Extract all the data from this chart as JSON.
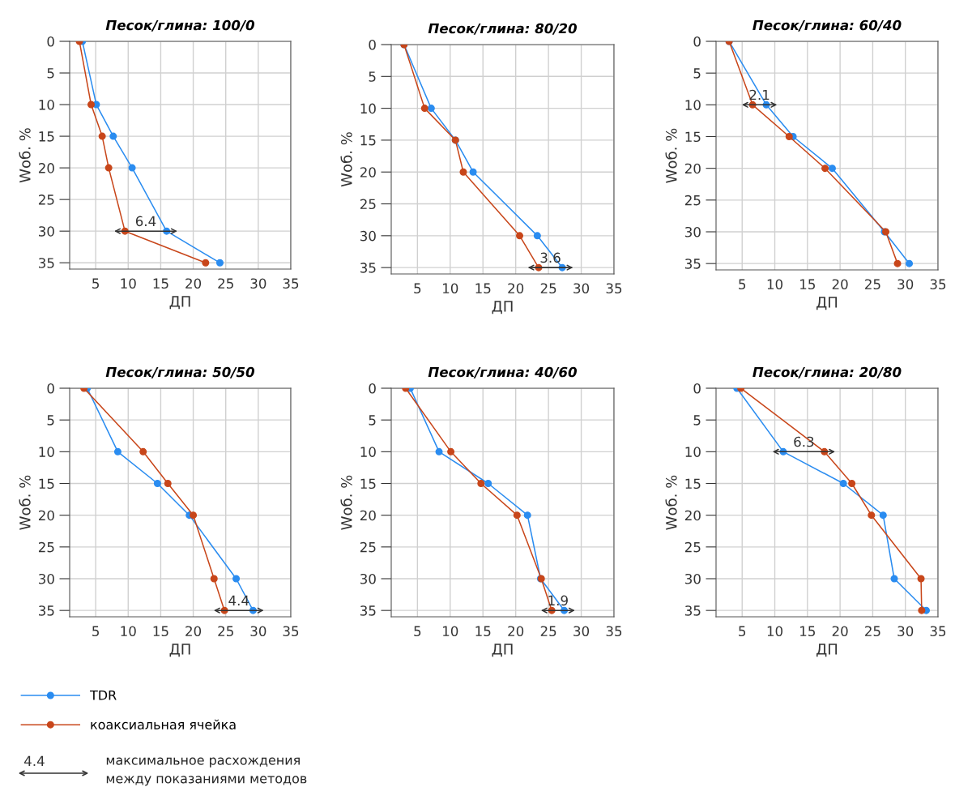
{
  "chart_data": [
    {
      "type": "line",
      "title": "Песок/глина: 100/0",
      "xlabel": "ДП",
      "ylabel": "Wоб. %",
      "xlim": [
        1,
        35
      ],
      "ylim": [
        36,
        0
      ],
      "xticks": [
        5,
        10,
        15,
        20,
        25,
        30,
        35
      ],
      "yticks": [
        0,
        5,
        10,
        15,
        20,
        25,
        30,
        35
      ],
      "grid": true,
      "marker": "circle",
      "line_style": "solid",
      "legend": "bottom",
      "series": [
        {
          "name": "TDR",
          "color": "#2a8cf0",
          "x": [
            2.95,
            5.1,
            7.7,
            10.6,
            15.9,
            24.1
          ],
          "values": [
            0,
            10,
            15,
            20,
            30,
            35
          ]
        },
        {
          "name": "коаксиальная ячейка",
          "color": "#c8461a",
          "x": [
            2.5,
            4.3,
            6.0,
            7.0,
            9.5,
            21.9
          ],
          "values": [
            0,
            10,
            15,
            20,
            30,
            35
          ]
        }
      ],
      "annotations": [
        {
          "text": "6.4",
          "x": 15.9,
          "y": 30
        }
      ]
    },
    {
      "type": "line",
      "title": "Песок/глина: 80/20",
      "xlabel": "ДП",
      "ylabel": "Wоб. %",
      "xlim": [
        1,
        35
      ],
      "ylim": [
        36,
        0
      ],
      "xticks": [
        5,
        10,
        15,
        20,
        25,
        30,
        35
      ],
      "yticks": [
        0,
        5,
        10,
        15,
        20,
        25,
        30,
        35
      ],
      "grid": true,
      "marker": "circle",
      "line_style": "solid",
      "series": [
        {
          "color": "#2a8cf0",
          "x": [
            2.95,
            7.1,
            10.8,
            13.5,
            23.3,
            27.1
          ],
          "values": [
            0,
            10,
            15,
            20,
            30,
            35
          ]
        },
        {
          "color": "#c8461a",
          "x": [
            2.95,
            6.1,
            10.8,
            12.0,
            20.6,
            23.5
          ],
          "values": [
            0,
            10,
            15,
            20,
            30,
            35
          ]
        }
      ],
      "annotations": [
        {
          "text": "3.6",
          "x": 27.1,
          "y": 35
        }
      ]
    },
    {
      "type": "line",
      "title": "Песок/глина: 60/40",
      "xlabel": "ДП",
      "ylabel": "Wоб. %",
      "xlim": [
        1,
        35
      ],
      "ylim": [
        36,
        0
      ],
      "xticks": [
        5,
        10,
        15,
        20,
        25,
        30,
        35
      ],
      "yticks": [
        0,
        5,
        10,
        15,
        20,
        25,
        30,
        35
      ],
      "grid": true,
      "marker": "circle",
      "line_style": "solid",
      "series": [
        {
          "color": "#2a8cf0",
          "x": [
            3.0,
            8.7,
            12.8,
            18.8,
            26.8,
            30.6
          ],
          "values": [
            0,
            10,
            15,
            20,
            30,
            35
          ]
        },
        {
          "color": "#c8461a",
          "x": [
            3.0,
            6.6,
            12.2,
            17.7,
            27.0,
            28.8
          ],
          "values": [
            0,
            10,
            15,
            20,
            30,
            35
          ]
        }
      ],
      "annotations": [
        {
          "text": "2.1",
          "x": 8.7,
          "y": 10
        }
      ]
    },
    {
      "type": "line",
      "title": "Песок/глина: 50/50",
      "xlabel": "ДП",
      "ylabel": "Wоб. %",
      "xlim": [
        1,
        35
      ],
      "ylim": [
        36,
        0
      ],
      "xticks": [
        5,
        10,
        15,
        20,
        25,
        30,
        35
      ],
      "yticks": [
        0,
        5,
        10,
        15,
        20,
        25,
        30,
        35
      ],
      "grid": true,
      "marker": "circle",
      "line_style": "solid",
      "series": [
        {
          "color": "#2a8cf0",
          "x": [
            3.7,
            8.4,
            14.5,
            19.4,
            26.6,
            29.2
          ],
          "values": [
            0,
            10,
            15,
            20,
            30,
            35
          ]
        },
        {
          "color": "#c8461a",
          "x": [
            3.2,
            12.3,
            16.1,
            20.0,
            23.2,
            24.8
          ],
          "values": [
            0,
            10,
            15,
            20,
            30,
            35
          ]
        }
      ],
      "annotations": [
        {
          "text": "4.4",
          "x": 29.2,
          "y": 35
        }
      ]
    },
    {
      "type": "line",
      "title": "Песок/глина: 40/60",
      "xlabel": "ДП",
      "ylabel": "Wоб. %",
      "xlim": [
        1,
        35
      ],
      "ylim": [
        36,
        0
      ],
      "xticks": [
        5,
        10,
        15,
        20,
        25,
        30,
        35
      ],
      "yticks": [
        0,
        5,
        10,
        15,
        20,
        25,
        30,
        35
      ],
      "grid": true,
      "marker": "circle",
      "line_style": "solid",
      "series": [
        {
          "color": "#2a8cf0",
          "x": [
            3.9,
            8.3,
            15.8,
            21.8,
            23.8,
            27.4
          ],
          "values": [
            0,
            10,
            15,
            20,
            30,
            35
          ]
        },
        {
          "color": "#c8461a",
          "x": [
            3.2,
            10.1,
            14.7,
            20.2,
            23.9,
            25.5
          ],
          "values": [
            0,
            10,
            15,
            20,
            30,
            35
          ]
        }
      ],
      "annotations": [
        {
          "text": "1.9",
          "x": 27.4,
          "y": 35
        }
      ]
    },
    {
      "type": "line",
      "title": "Песок/глина: 20/80",
      "xlabel": "ДП",
      "ylabel": "Wоб. %",
      "xlim": [
        1,
        35
      ],
      "ylim": [
        36,
        0
      ],
      "xticks": [
        5,
        10,
        15,
        20,
        25,
        30,
        35
      ],
      "yticks": [
        0,
        5,
        10,
        15,
        20,
        25,
        30,
        35
      ],
      "grid": true,
      "marker": "circle",
      "line_style": "solid",
      "series": [
        {
          "color": "#2a8cf0",
          "x": [
            4.2,
            11.3,
            20.5,
            26.6,
            28.3,
            33.2
          ],
          "values": [
            0,
            10,
            15,
            20,
            30,
            35
          ]
        },
        {
          "color": "#c8461a",
          "x": [
            4.8,
            17.6,
            21.8,
            24.8,
            32.4,
            32.5
          ],
          "values": [
            0,
            10,
            15,
            20,
            30,
            35
          ]
        }
      ],
      "annotations": [
        {
          "text": "6.3",
          "x": 11.3,
          "y": 10
        }
      ]
    },
    {
      "type": "other",
      "annotations": [
        "4.4",
        "максимальное расхождения\nмежду показаниями методов"
      ]
    }
  ]
}
